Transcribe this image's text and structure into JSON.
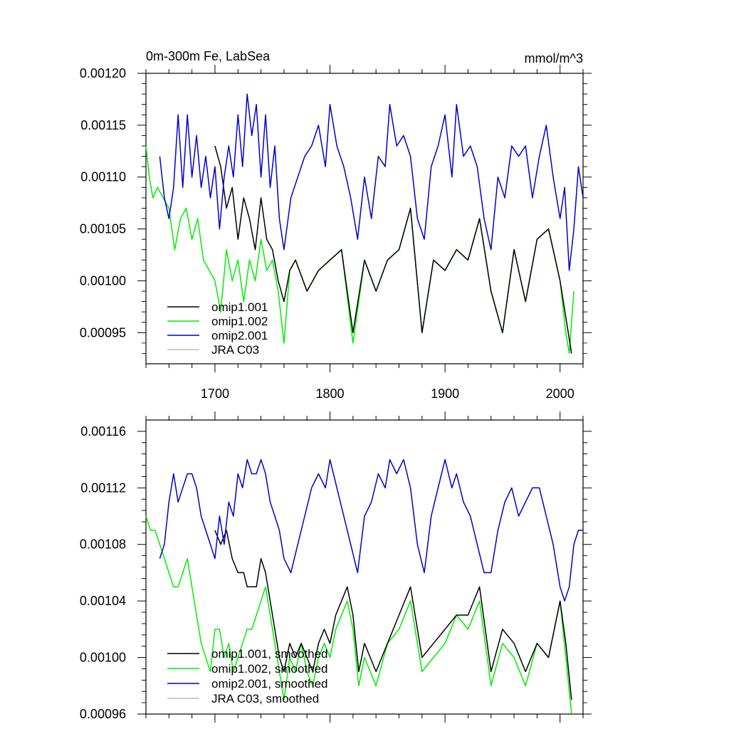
{
  "chart_data": [
    {
      "type": "line",
      "title_left": "0m-300m Fe, LabSea",
      "title_right": "mmol/m^3",
      "xlim": [
        1640,
        2020
      ],
      "ylim": [
        0.00092,
        0.0012
      ],
      "x_ticks": [
        1700,
        1800,
        1900,
        2000
      ],
      "x_tick_labels": [
        "1700",
        "1800",
        "1900",
        "2000"
      ],
      "y_ticks": [
        0.00095,
        0.001,
        0.00105,
        0.0011,
        0.00115,
        0.0012
      ],
      "y_tick_labels": [
        "0.00095",
        "0.00100",
        "0.00105",
        "0.00110",
        "0.00115",
        "0.00120"
      ],
      "legend": [
        {
          "label": "omip1.001",
          "color": "#000000"
        },
        {
          "label": "omip1.002",
          "color": "#00ee00"
        },
        {
          "label": "omip2.001",
          "color": "#0000cc"
        },
        {
          "label": "JRA C03",
          "color": "#bbbbbb"
        }
      ],
      "series": [
        {
          "name": "omip1.001",
          "color": "#000000",
          "x": [
            1700,
            1705,
            1710,
            1715,
            1720,
            1725,
            1730,
            1735,
            1740,
            1745,
            1750,
            1755,
            1760,
            1765,
            1770,
            1780,
            1790,
            1800,
            1810,
            1820,
            1830,
            1840,
            1850,
            1860,
            1870,
            1880,
            1890,
            1900,
            1910,
            1920,
            1930,
            1940,
            1950,
            1960,
            1970,
            1980,
            1990,
            2000,
            2010
          ],
          "values": [
            0.00113,
            0.00111,
            0.00107,
            0.00109,
            0.00104,
            0.00108,
            0.00106,
            0.00103,
            0.00108,
            0.00104,
            0.00103,
            0.001,
            0.00098,
            0.00101,
            0.00102,
            0.00099,
            0.00101,
            0.00102,
            0.00103,
            0.00095,
            0.00102,
            0.00099,
            0.00102,
            0.00103,
            0.00107,
            0.00095,
            0.00102,
            0.00101,
            0.00103,
            0.00102,
            0.00106,
            0.00099,
            0.00095,
            0.00103,
            0.00098,
            0.00104,
            0.00105,
            0.001,
            0.00093
          ]
        },
        {
          "name": "omip1.002",
          "color": "#00ee00",
          "x": [
            1640,
            1643,
            1646,
            1650,
            1655,
            1660,
            1665,
            1670,
            1675,
            1680,
            1685,
            1690,
            1695,
            1700,
            1705,
            1710,
            1715,
            1720,
            1725,
            1730,
            1735,
            1740,
            1745,
            1750,
            1755,
            1760,
            1765,
            1770,
            1780,
            1790,
            1800,
            1810,
            1820,
            1830,
            1840,
            1850,
            1860,
            1870,
            1880,
            1890,
            1900,
            1910,
            1920,
            1930,
            1940,
            1950,
            1960,
            1970,
            1980,
            1990,
            2000,
            2005,
            2008,
            2012
          ],
          "values": [
            0.00113,
            0.0011,
            0.00108,
            0.00109,
            0.00108,
            0.00107,
            0.00103,
            0.00106,
            0.00107,
            0.00104,
            0.00106,
            0.00102,
            0.00101,
            0.001,
            0.00097,
            0.00103,
            0.001,
            0.00102,
            0.00098,
            0.00102,
            0.001,
            0.00104,
            0.00101,
            0.00102,
            0.00099,
            0.00094,
            0.00101,
            0.00102,
            0.00099,
            0.00101,
            0.00102,
            0.00103,
            0.00094,
            0.00102,
            0.00099,
            0.00102,
            0.00103,
            0.00107,
            0.00095,
            0.00102,
            0.00101,
            0.00103,
            0.00102,
            0.00106,
            0.00099,
            0.00095,
            0.00103,
            0.00098,
            0.00104,
            0.00105,
            0.001,
            0.00095,
            0.00093,
            0.00099
          ]
        },
        {
          "name": "omip2.001",
          "color": "#0000cc",
          "x": [
            1652,
            1656,
            1660,
            1664,
            1668,
            1672,
            1676,
            1680,
            1684,
            1688,
            1692,
            1696,
            1700,
            1704,
            1708,
            1712,
            1716,
            1720,
            1724,
            1728,
            1732,
            1736,
            1740,
            1744,
            1748,
            1752,
            1756,
            1760,
            1766,
            1772,
            1778,
            1784,
            1790,
            1796,
            1800,
            1806,
            1812,
            1818,
            1824,
            1830,
            1836,
            1842,
            1848,
            1852,
            1858,
            1864,
            1870,
            1876,
            1882,
            1888,
            1894,
            1900,
            1906,
            1910,
            1916,
            1922,
            1928,
            1934,
            1940,
            1946,
            1952,
            1958,
            1964,
            1970,
            1976,
            1982,
            1988,
            1994,
            2000,
            2004,
            2008,
            2012,
            2016,
            2020
          ],
          "values": [
            0.00112,
            0.00108,
            0.00106,
            0.00109,
            0.00116,
            0.00109,
            0.00116,
            0.0011,
            0.00114,
            0.00109,
            0.00112,
            0.00108,
            0.00111,
            0.00105,
            0.0011,
            0.00113,
            0.0011,
            0.00116,
            0.00111,
            0.00118,
            0.00114,
            0.00117,
            0.0011,
            0.00116,
            0.00109,
            0.00113,
            0.00106,
            0.00103,
            0.00108,
            0.0011,
            0.00112,
            0.00113,
            0.00115,
            0.00111,
            0.00117,
            0.00113,
            0.00111,
            0.00108,
            0.00104,
            0.0011,
            0.00106,
            0.00112,
            0.00111,
            0.00117,
            0.00113,
            0.00114,
            0.00112,
            0.00106,
            0.00104,
            0.00111,
            0.00113,
            0.00116,
            0.0011,
            0.00117,
            0.00112,
            0.00113,
            0.00111,
            0.00106,
            0.00103,
            0.0011,
            0.00108,
            0.00113,
            0.00112,
            0.00113,
            0.00108,
            0.00112,
            0.00115,
            0.0011,
            0.00106,
            0.00109,
            0.00101,
            0.00105,
            0.00111,
            0.00108
          ]
        }
      ]
    },
    {
      "type": "line",
      "xlim": [
        1640,
        2020
      ],
      "ylim": [
        0.00096,
        0.001168
      ],
      "x_ticks": [
        1700,
        1800,
        1900,
        2000
      ],
      "y_ticks": [
        0.00096,
        0.001,
        0.00104,
        0.00108,
        0.00112,
        0.00116
      ],
      "y_tick_labels": [
        "0.00096",
        "0.00100",
        "0.00104",
        "0.00108",
        "0.00112",
        "0.00116"
      ],
      "legend": [
        {
          "label": "omip1.001, smoothed",
          "color": "#000000"
        },
        {
          "label": "omip1.002, smoothed",
          "color": "#00ee00"
        },
        {
          "label": "omip2.001, smoothed",
          "color": "#0000cc"
        },
        {
          "label": "JRA C03, smoothed",
          "color": "#bbbbbb"
        }
      ],
      "series": [
        {
          "name": "omip1.001, smoothed",
          "color": "#000000",
          "x": [
            1700,
            1705,
            1710,
            1715,
            1720,
            1725,
            1728,
            1732,
            1736,
            1740,
            1744,
            1748,
            1752,
            1756,
            1760,
            1765,
            1770,
            1775,
            1780,
            1785,
            1790,
            1795,
            1800,
            1805,
            1810,
            1815,
            1820,
            1825,
            1830,
            1840,
            1850,
            1860,
            1870,
            1880,
            1890,
            1900,
            1910,
            1920,
            1930,
            1940,
            1950,
            1960,
            1970,
            1980,
            1990,
            2000,
            2005,
            2010
          ],
          "values": [
            0.00109,
            0.00108,
            0.00109,
            0.00107,
            0.00106,
            0.00106,
            0.00105,
            0.00105,
            0.00105,
            0.00107,
            0.00106,
            0.00104,
            0.00102,
            0.001,
            0.00099,
            0.00101,
            0.001,
            0.00101,
            0.001,
            0.00099,
            0.00101,
            0.00102,
            0.00101,
            0.00103,
            0.00104,
            0.00105,
            0.00103,
            0.00099,
            0.00101,
            0.00099,
            0.00101,
            0.00103,
            0.00105,
            0.001,
            0.00101,
            0.00102,
            0.00103,
            0.00103,
            0.00105,
            0.00099,
            0.00102,
            0.00101,
            0.00099,
            0.00101,
            0.001,
            0.00104,
            0.00101,
            0.00097
          ]
        },
        {
          "name": "omip1.002, smoothed",
          "color": "#00ee00",
          "x": [
            1640,
            1644,
            1648,
            1652,
            1656,
            1660,
            1664,
            1668,
            1672,
            1676,
            1680,
            1684,
            1688,
            1692,
            1696,
            1700,
            1704,
            1708,
            1712,
            1716,
            1720,
            1724,
            1728,
            1732,
            1736,
            1740,
            1744,
            1748,
            1752,
            1756,
            1760,
            1765,
            1770,
            1775,
            1780,
            1785,
            1790,
            1795,
            1800,
            1805,
            1810,
            1815,
            1820,
            1825,
            1830,
            1840,
            1850,
            1860,
            1870,
            1880,
            1890,
            1900,
            1910,
            1920,
            1930,
            1940,
            1950,
            1960,
            1970,
            1980,
            1990,
            2000,
            2005,
            2010
          ],
          "values": [
            0.0011,
            0.00109,
            0.00109,
            0.00108,
            0.00107,
            0.00106,
            0.00105,
            0.00105,
            0.00106,
            0.00107,
            0.00105,
            0.00103,
            0.00101,
            0.001,
            0.00099,
            0.00102,
            0.00102,
            0.001,
            0.00101,
            0.00099,
            0.001,
            0.00101,
            0.00102,
            0.00102,
            0.00103,
            0.00104,
            0.00105,
            0.00103,
            0.00101,
            0.00099,
            0.00097,
            0.001,
            0.00099,
            0.00101,
            0.00099,
            0.00098,
            0.001,
            0.00101,
            0.001,
            0.00102,
            0.00103,
            0.00104,
            0.00102,
            0.00098,
            0.001,
            0.00098,
            0.00101,
            0.00102,
            0.00104,
            0.00099,
            0.001,
            0.00101,
            0.00103,
            0.00102,
            0.00104,
            0.00098,
            0.00101,
            0.001,
            0.00098,
            0.00101,
            0.001,
            0.00104,
            0.001,
            0.00096
          ]
        },
        {
          "name": "omip2.001, smoothed",
          "color": "#0000cc",
          "x": [
            1652,
            1656,
            1660,
            1664,
            1668,
            1672,
            1676,
            1680,
            1684,
            1688,
            1692,
            1696,
            1700,
            1704,
            1708,
            1712,
            1716,
            1720,
            1724,
            1728,
            1732,
            1736,
            1740,
            1744,
            1748,
            1752,
            1756,
            1760,
            1766,
            1772,
            1778,
            1784,
            1790,
            1796,
            1800,
            1806,
            1812,
            1818,
            1824,
            1830,
            1836,
            1842,
            1848,
            1852,
            1858,
            1864,
            1870,
            1876,
            1882,
            1888,
            1894,
            1900,
            1906,
            1910,
            1916,
            1922,
            1928,
            1934,
            1940,
            1946,
            1952,
            1958,
            1964,
            1970,
            1976,
            1982,
            1988,
            1994,
            2000,
            2004,
            2008,
            2012,
            2016,
            2020
          ],
          "values": [
            0.00107,
            0.00108,
            0.00111,
            0.00113,
            0.00111,
            0.00112,
            0.00113,
            0.00113,
            0.00112,
            0.0011,
            0.00109,
            0.00108,
            0.00107,
            0.0011,
            0.00108,
            0.00111,
            0.0011,
            0.00113,
            0.00112,
            0.00114,
            0.00113,
            0.00113,
            0.00114,
            0.00113,
            0.00111,
            0.0011,
            0.00109,
            0.00107,
            0.00106,
            0.00108,
            0.0011,
            0.00112,
            0.00113,
            0.00112,
            0.00114,
            0.00112,
            0.0011,
            0.00108,
            0.00106,
            0.0011,
            0.00111,
            0.00113,
            0.00112,
            0.00114,
            0.00113,
            0.00114,
            0.00112,
            0.00108,
            0.00106,
            0.0011,
            0.00112,
            0.00114,
            0.00112,
            0.00113,
            0.00111,
            0.0011,
            0.00108,
            0.00106,
            0.00106,
            0.00109,
            0.00111,
            0.00112,
            0.0011,
            0.00111,
            0.00112,
            0.00112,
            0.0011,
            0.00108,
            0.00105,
            0.00104,
            0.00105,
            0.00108,
            0.00109,
            0.00109
          ]
        }
      ]
    }
  ]
}
